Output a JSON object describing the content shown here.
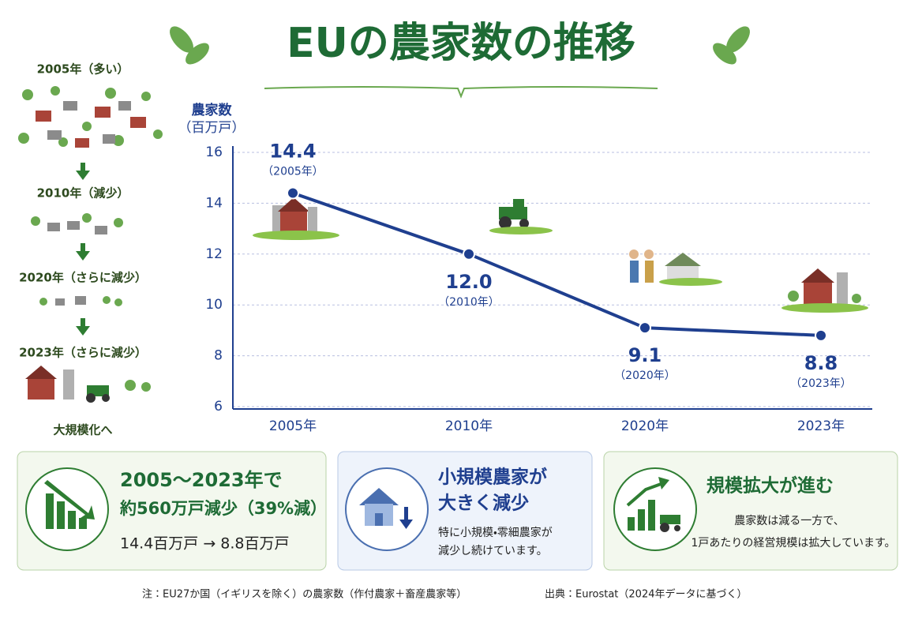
{
  "header": {
    "title": "EUの農家数の推移"
  },
  "sidebar": {
    "stages": [
      "2005年（多い）",
      "2010年（減少）",
      "2020年（さらに減少）",
      "2023年（さらに減少）"
    ],
    "conclusion": "大規模化へ"
  },
  "chart_data": {
    "type": "line",
    "y_label": "農家数",
    "y_unit": "（百万戸）",
    "categories": [
      "2005年",
      "2010年",
      "2020年",
      "2023年"
    ],
    "values": [
      14.4,
      12.0,
      9.1,
      8.8
    ],
    "value_labels": [
      "14.4",
      "12.0",
      "9.1",
      "8.8"
    ],
    "point_notes": [
      "（2005年）",
      "（2010年）",
      "（2020年）",
      "（2023年）"
    ],
    "color": "#1f3f8f",
    "ylim": [
      6,
      16
    ],
    "yticks": [
      6,
      8,
      10,
      12,
      14,
      16
    ],
    "grid": true
  },
  "cards": [
    {
      "lines": [
        "2005～2023年で",
        "約560万戸減少（39%減）",
        "14.4百万戸 → 8.8百万戸"
      ]
    },
    {
      "title": [
        "小規模農家が",
        "大きく減少"
      ],
      "body": [
        "特に小規模・零細農家が",
        "減少し続けています。"
      ]
    },
    {
      "title": [
        "規模拡大が進む"
      ],
      "body": [
        "農家数は減る一方で、",
        "1戸あたりの経営規模は拡大しています。"
      ]
    }
  ],
  "footnote": {
    "note": "注：EU27か国（イギリスを除く）の農家数（作付農家＋畜産農家等）",
    "source": "出典：Eurostat（2024年データに基づく）"
  }
}
